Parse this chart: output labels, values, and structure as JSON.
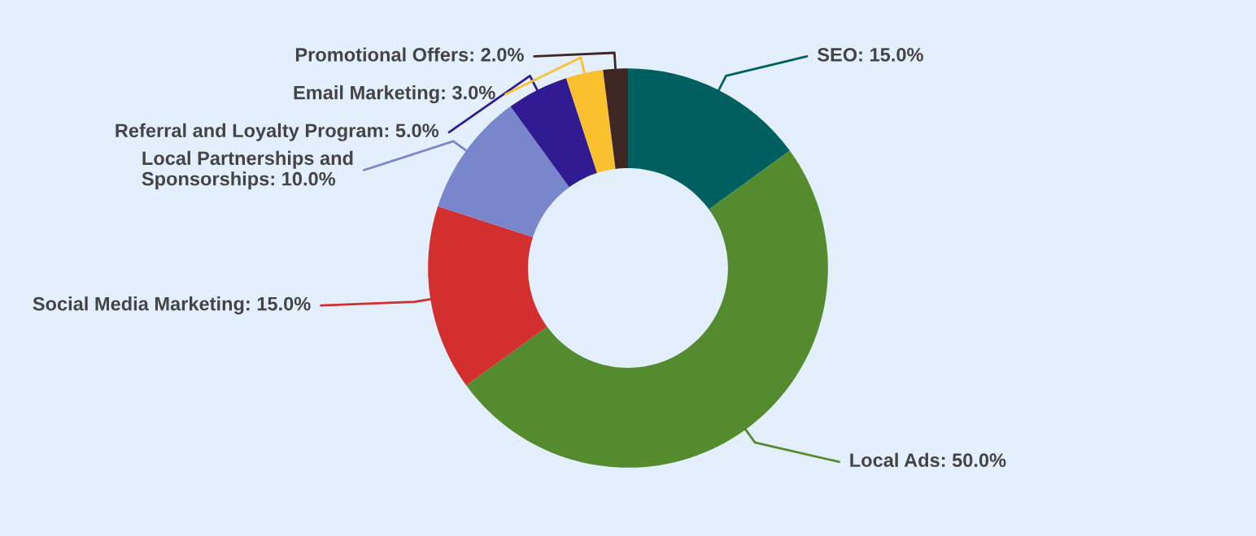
{
  "chart_data": {
    "type": "donut",
    "categories": [
      "SEO: 15.0%",
      "Local Ads: 50.0%",
      "Social Media Marketing: 15.0%",
      "Local Partnerships and\nSponsorships: 10.0%",
      "Referral and Loyalty Program: 5.0%",
      "Email Marketing: 3.0%",
      "Promotional Offers: 2.0%"
    ],
    "values": [
      15.0,
      50.0,
      15.0,
      10.0,
      5.0,
      3.0,
      2.0
    ],
    "colors": [
      "#00605f",
      "#558b2f",
      "#d32f2f",
      "#7986cb",
      "#311b92",
      "#fbc02d",
      "#3e2723"
    ]
  }
}
